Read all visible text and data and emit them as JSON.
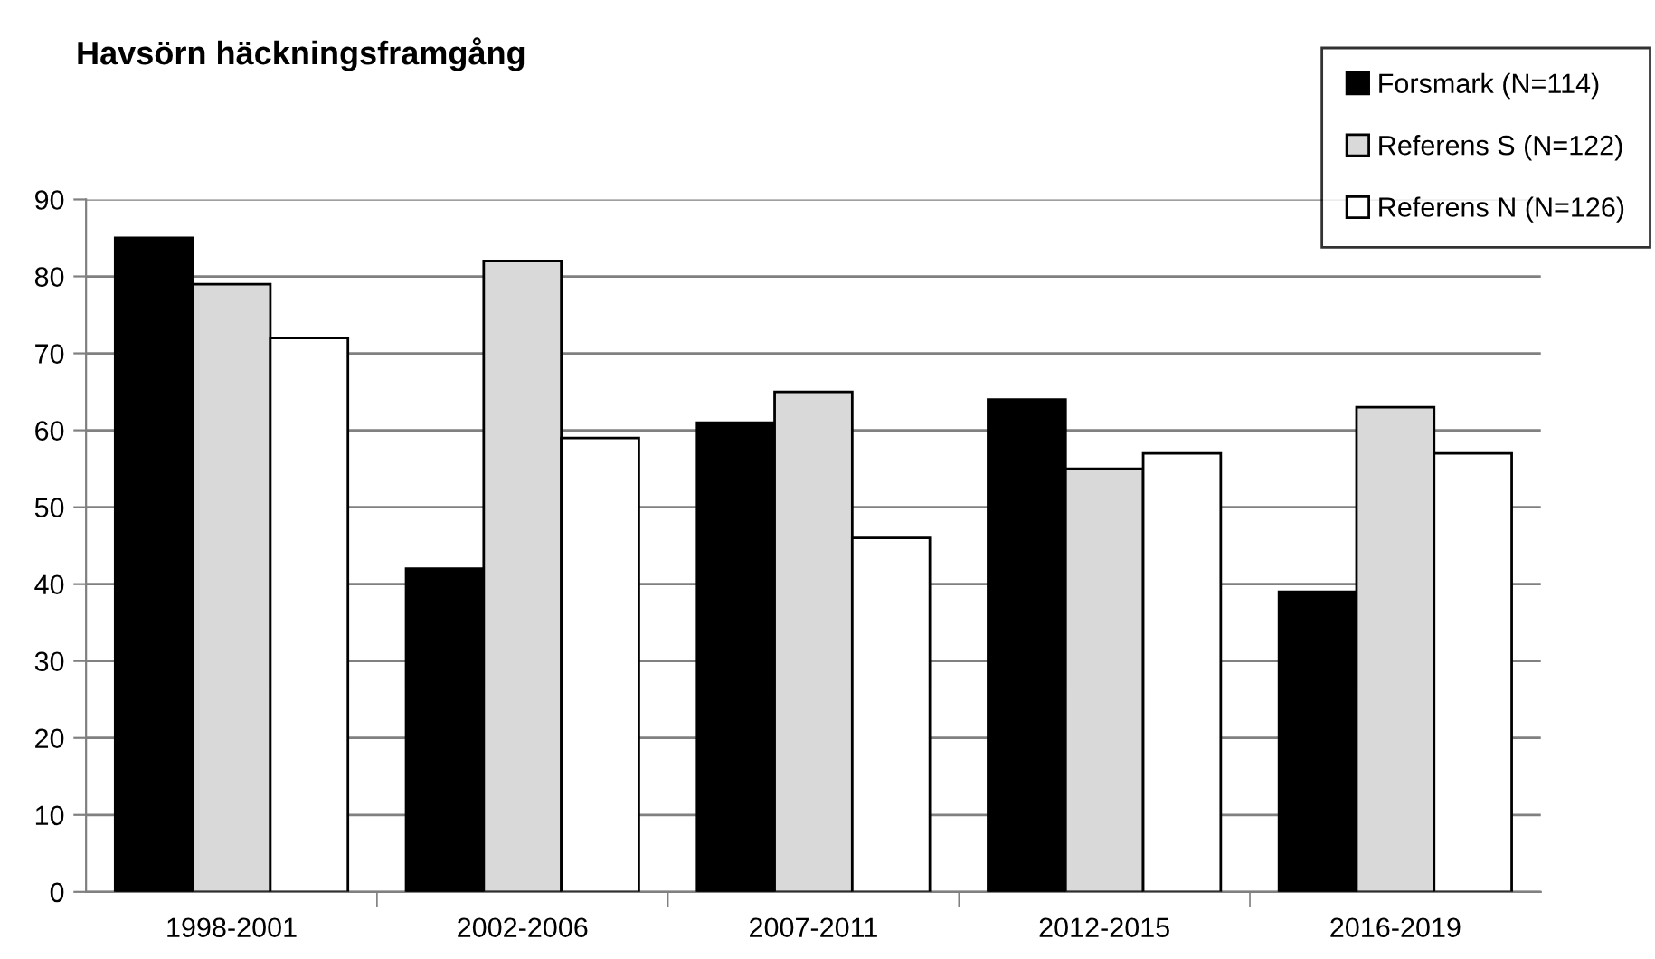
{
  "chart_data": {
    "type": "bar",
    "title": "Havsörn häckningsframgång",
    "categories": [
      "1998-2001",
      "2002-2006",
      "2007-2011",
      "2012-2015",
      "2016-2019"
    ],
    "series": [
      {
        "name": "Forsmark (N=114)",
        "color": "#000000",
        "values": [
          85,
          42,
          61,
          64,
          39
        ]
      },
      {
        "name": "Referens S (N=122)",
        "color": "#d9d9d9",
        "values": [
          79,
          82,
          65,
          55,
          63
        ]
      },
      {
        "name": "Referens N (N=126)",
        "color": "#ffffff",
        "values": [
          72,
          59,
          46,
          57,
          57
        ]
      }
    ],
    "ylim": [
      0,
      90
    ],
    "yticks": [
      0,
      10,
      20,
      30,
      40,
      50,
      60,
      70,
      80,
      90
    ],
    "grid": "y",
    "legend": "top right"
  }
}
